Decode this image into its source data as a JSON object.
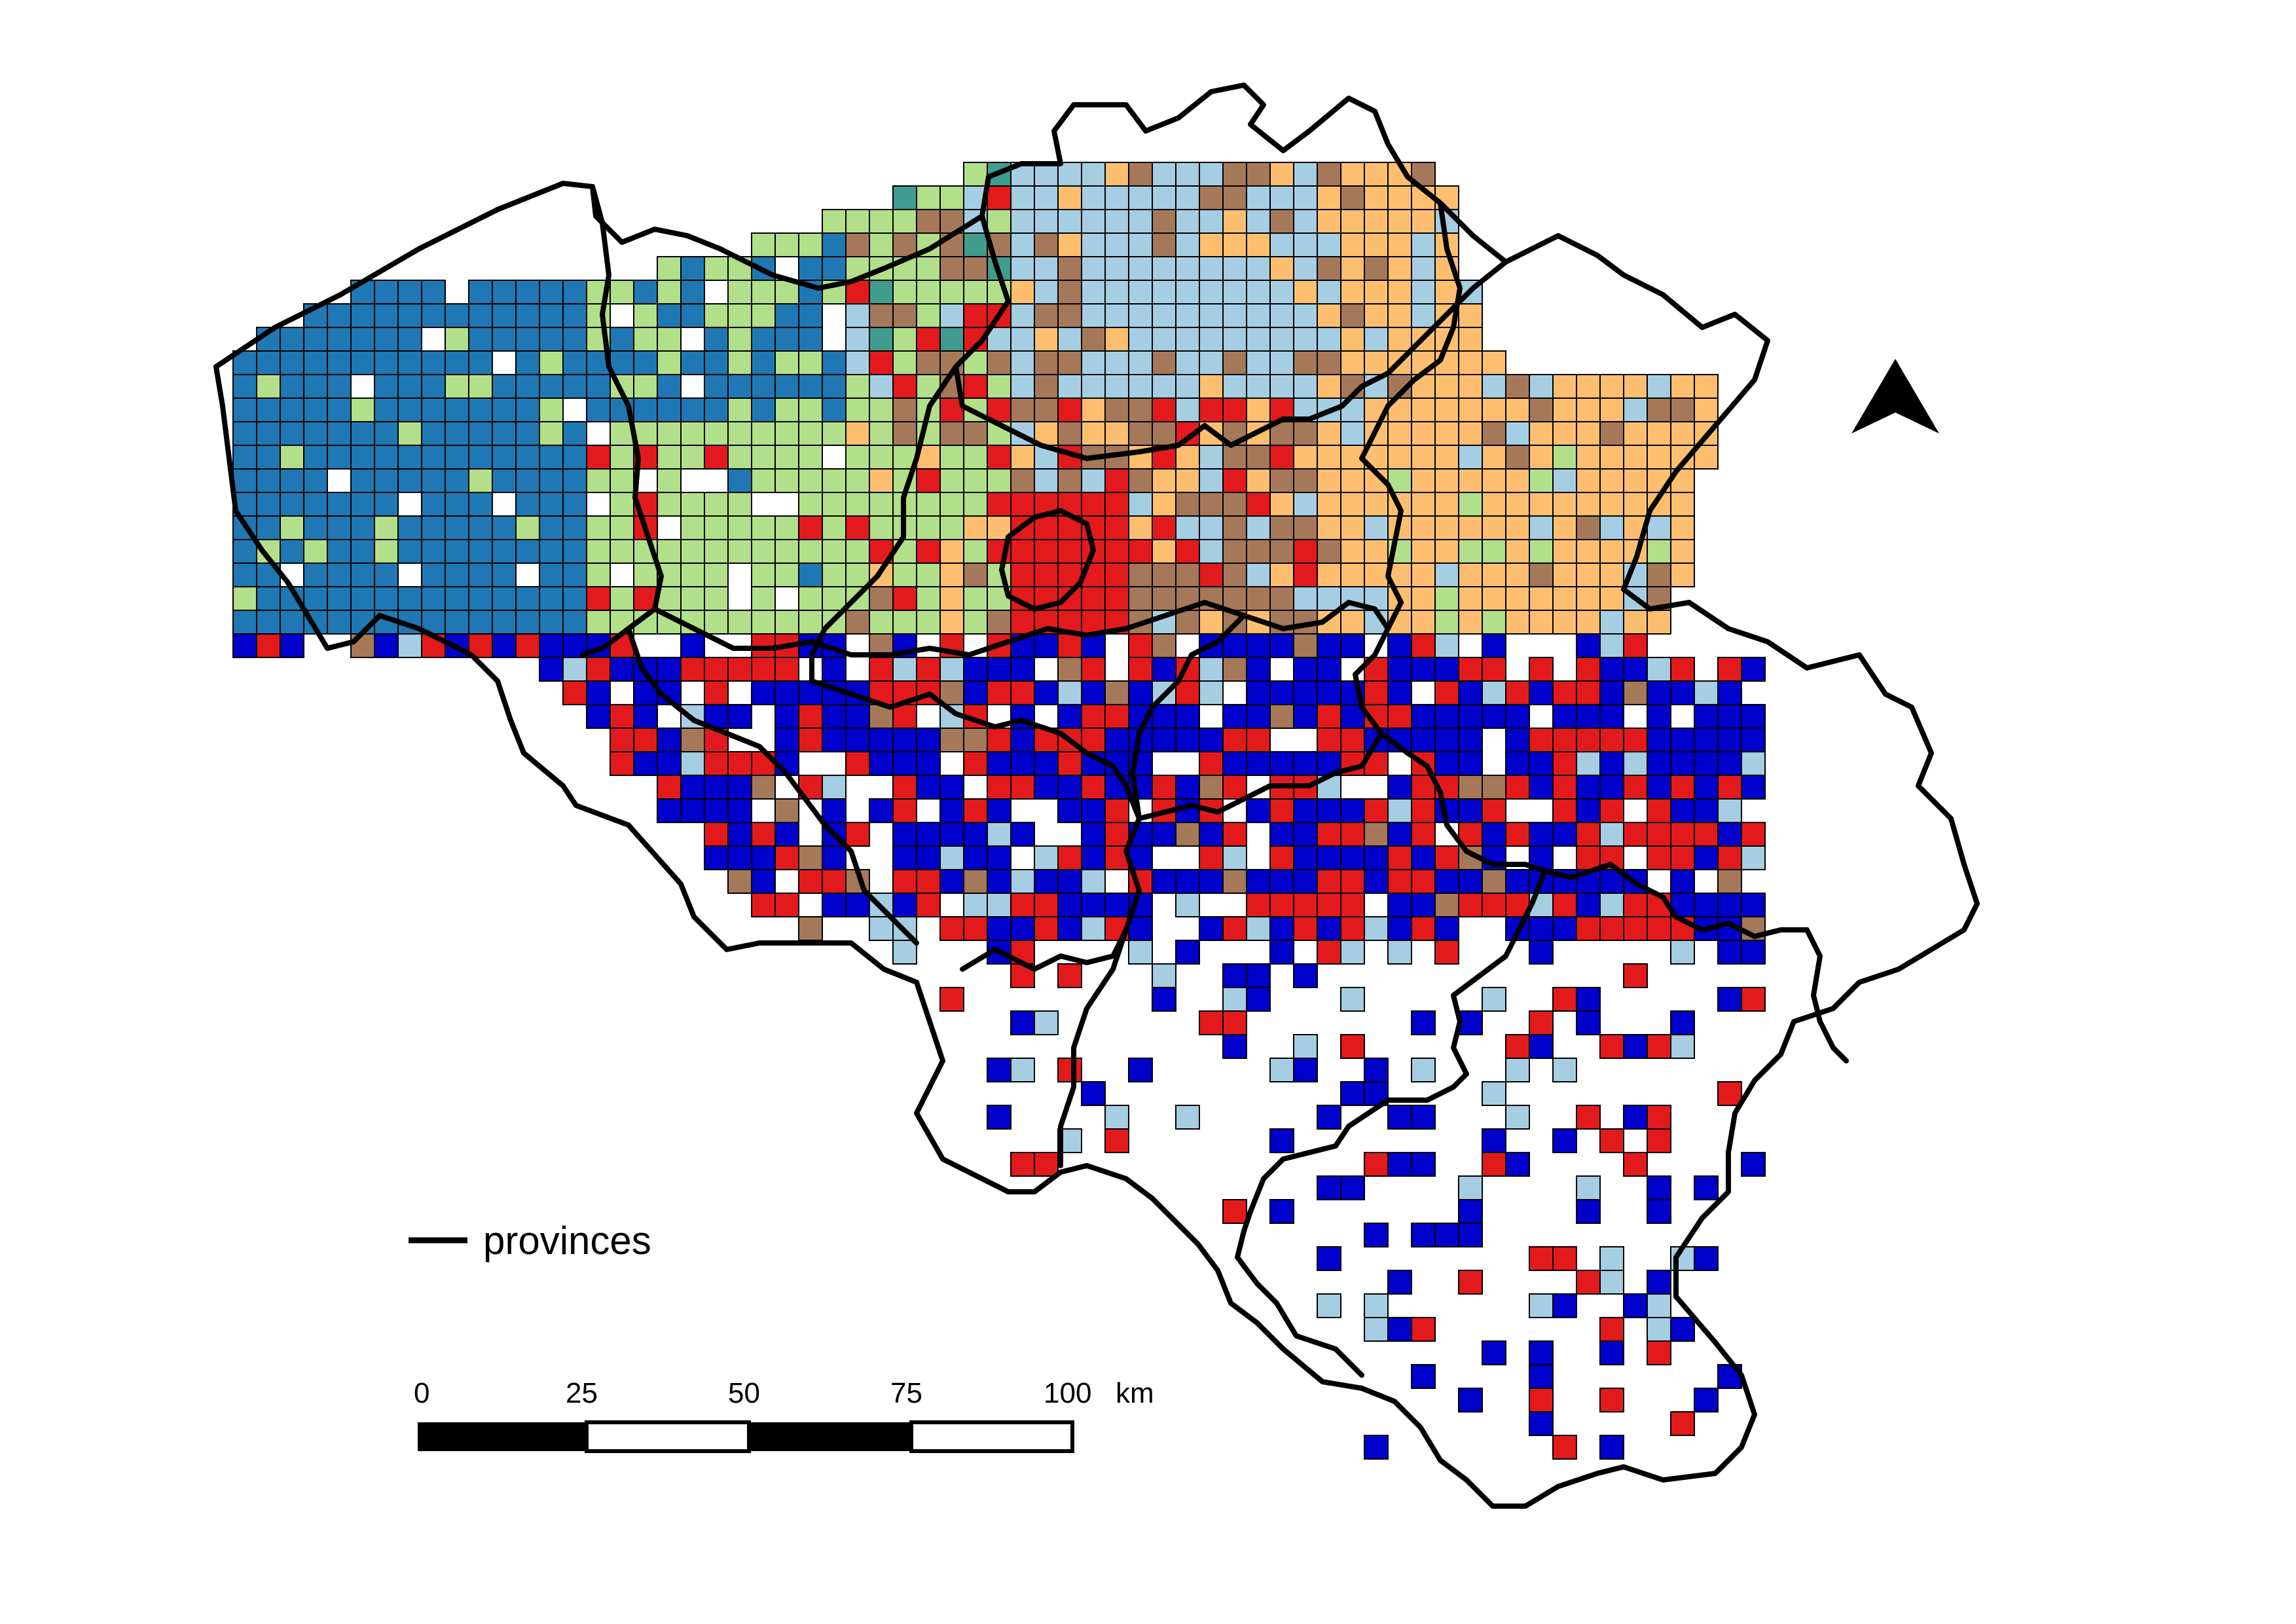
{
  "legend": {
    "boundary_label": "provinces"
  },
  "scale_bar": {
    "ticks": [
      "0",
      "25",
      "50",
      "75",
      "100"
    ],
    "unit": "km"
  },
  "north_arrow": {
    "icon": "north-arrow-icon"
  },
  "colors": {
    "dark_blue": "#0000cc",
    "red": "#e31a1c",
    "brown": "#a6785a",
    "orange": "#fdbf6f",
    "light_blue": "#a6cee3",
    "steel_blue": "#1f78b4",
    "light_green": "#b2df8a",
    "teal": "#3f9c8e",
    "white": "#ffffff",
    "outline": "#000000"
  }
}
